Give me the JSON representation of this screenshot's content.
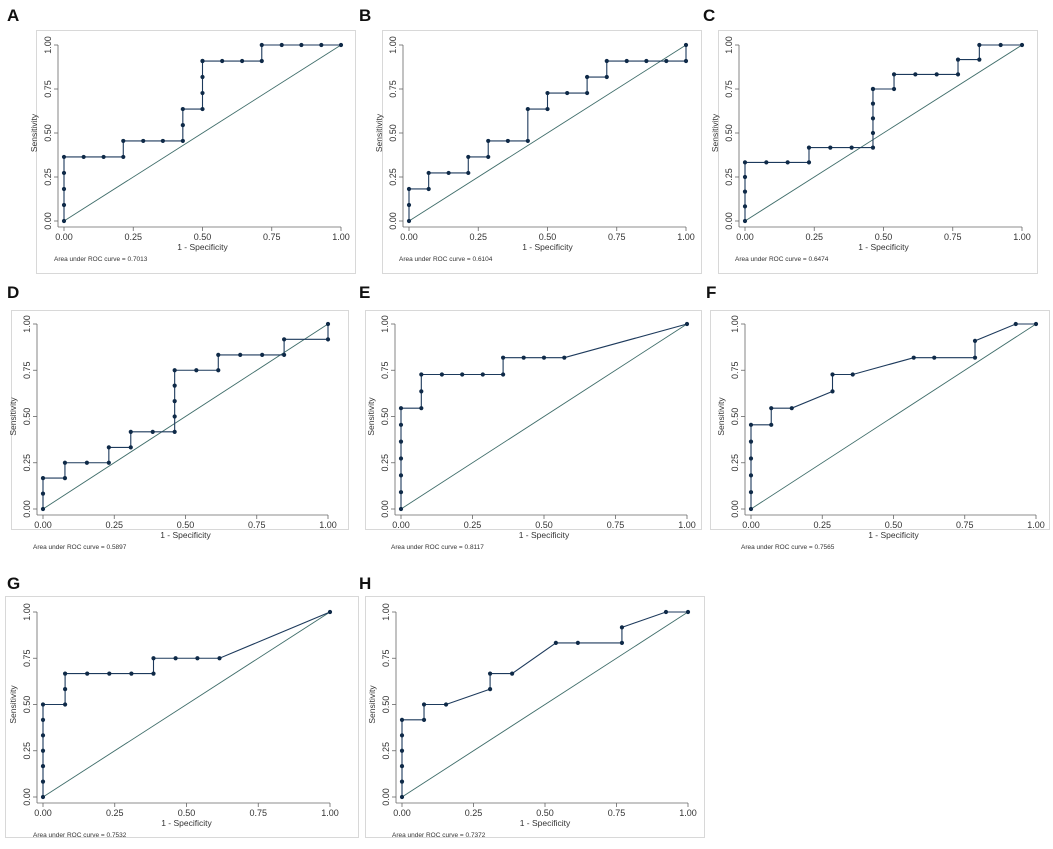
{
  "colors": {
    "curve": "#1d3a5c",
    "reference": "#3f6d6a",
    "point": "#0f2a48"
  },
  "chart_data": [
    {
      "panel": "A",
      "type": "line",
      "xlabel": "1 - Specificity",
      "ylabel": "Sensitivity",
      "xlim": [
        0,
        1
      ],
      "ylim": [
        0,
        1
      ],
      "xticks": [
        "0.00",
        "0.25",
        "0.50",
        "0.75",
        "1.00"
      ],
      "yticks": [
        "0.00",
        "0.25",
        "0.50",
        "0.75",
        "1.00"
      ],
      "auc_label": "Area under ROC curve = 0.7013",
      "series": [
        {
          "name": "ROC",
          "x": [
            0,
            0,
            0,
            0,
            0,
            0.071,
            0.143,
            0.214,
            0.214,
            0.286,
            0.357,
            0.429,
            0.429,
            0.429,
            0.5,
            0.5,
            0.5,
            0.5,
            0.5,
            0.571,
            0.643,
            0.714,
            0.714,
            0.786,
            0.857,
            0.929,
            1
          ],
          "y": [
            0,
            0.091,
            0.182,
            0.273,
            0.364,
            0.364,
            0.364,
            0.364,
            0.455,
            0.455,
            0.455,
            0.455,
            0.545,
            0.636,
            0.636,
            0.727,
            0.818,
            0.909,
            0.909,
            0.909,
            0.909,
            0.909,
            1,
            1,
            1,
            1,
            1
          ]
        }
      ]
    },
    {
      "panel": "B",
      "type": "line",
      "xlabel": "1 - Specificity",
      "ylabel": "Sensitivity",
      "xlim": [
        0,
        1
      ],
      "ylim": [
        0,
        1
      ],
      "xticks": [
        "0.00",
        "0.25",
        "0.50",
        "0.75",
        "1.00"
      ],
      "yticks": [
        "0.00",
        "0.25",
        "0.50",
        "0.75",
        "1.00"
      ],
      "auc_label": "Area under ROC curve = 0.6104",
      "series": [
        {
          "name": "ROC",
          "x": [
            0,
            0,
            0,
            0.071,
            0.071,
            0.143,
            0.214,
            0.214,
            0.286,
            0.286,
            0.357,
            0.429,
            0.429,
            0.5,
            0.5,
            0.571,
            0.643,
            0.643,
            0.714,
            0.714,
            0.786,
            0.857,
            0.929,
            1,
            1
          ],
          "y": [
            0,
            0.091,
            0.182,
            0.182,
            0.273,
            0.273,
            0.273,
            0.364,
            0.364,
            0.455,
            0.455,
            0.455,
            0.636,
            0.636,
            0.727,
            0.727,
            0.727,
            0.818,
            0.818,
            0.909,
            0.909,
            0.909,
            0.909,
            0.909,
            1
          ]
        }
      ]
    },
    {
      "panel": "C",
      "type": "line",
      "xlabel": "1 - Specificity",
      "ylabel": "Sensitivity",
      "xlim": [
        0,
        1
      ],
      "ylim": [
        0,
        1
      ],
      "xticks": [
        "0.00",
        "0.25",
        "0.50",
        "0.75",
        "1.00"
      ],
      "yticks": [
        "0.00",
        "0.25",
        "0.50",
        "0.75",
        "1.00"
      ],
      "auc_label": "Area under ROC curve = 0.6474",
      "series": [
        {
          "name": "ROC",
          "x": [
            0,
            0,
            0,
            0,
            0,
            0.077,
            0.154,
            0.231,
            0.231,
            0.308,
            0.385,
            0.462,
            0.462,
            0.462,
            0.462,
            0.462,
            0.462,
            0.538,
            0.538,
            0.615,
            0.692,
            0.769,
            0.769,
            0.846,
            0.846,
            0.923,
            1
          ],
          "y": [
            0,
            0.083,
            0.167,
            0.25,
            0.333,
            0.333,
            0.333,
            0.333,
            0.417,
            0.417,
            0.417,
            0.417,
            0.5,
            0.583,
            0.667,
            0.75,
            0.75,
            0.75,
            0.833,
            0.833,
            0.833,
            0.833,
            0.917,
            0.917,
            1,
            1,
            1
          ]
        }
      ]
    },
    {
      "panel": "D",
      "type": "line",
      "xlabel": "1 - Specificity",
      "ylabel": "Sensitivity",
      "xlim": [
        0,
        1
      ],
      "ylim": [
        0,
        1
      ],
      "xticks": [
        "0.00",
        "0.25",
        "0.50",
        "0.75",
        "1.00"
      ],
      "yticks": [
        "0.00",
        "0.25",
        "0.50",
        "0.75",
        "1.00"
      ],
      "auc_label": "Area under ROC curve = 0.5897",
      "series": [
        {
          "name": "ROC",
          "x": [
            0,
            0,
            0,
            0.077,
            0.077,
            0.154,
            0.231,
            0.231,
            0.308,
            0.308,
            0.385,
            0.462,
            0.462,
            0.462,
            0.462,
            0.462,
            0.538,
            0.615,
            0.615,
            0.692,
            0.769,
            0.846,
            0.846,
            1,
            1
          ],
          "y": [
            0,
            0.083,
            0.167,
            0.167,
            0.25,
            0.25,
            0.25,
            0.333,
            0.333,
            0.417,
            0.417,
            0.417,
            0.5,
            0.583,
            0.667,
            0.75,
            0.75,
            0.75,
            0.833,
            0.833,
            0.833,
            0.833,
            0.917,
            0.917,
            1
          ]
        }
      ]
    },
    {
      "panel": "E",
      "type": "line",
      "xlabel": "1 - Specificity",
      "ylabel": "Sensitivity",
      "xlim": [
        0,
        1
      ],
      "ylim": [
        0,
        1
      ],
      "xticks": [
        "0.00",
        "0.25",
        "0.50",
        "0.75",
        "1.00"
      ],
      "yticks": [
        "0.00",
        "0.25",
        "0.50",
        "0.75",
        "1.00"
      ],
      "auc_label": "Area under ROC curve = 0.8117",
      "series": [
        {
          "name": "ROC",
          "x": [
            0,
            0,
            0,
            0,
            0,
            0,
            0,
            0.071,
            0.071,
            0.071,
            0.143,
            0.214,
            0.286,
            0.357,
            0.357,
            0.429,
            0.5,
            0.571,
            1
          ],
          "y": [
            0,
            0.091,
            0.182,
            0.273,
            0.364,
            0.455,
            0.545,
            0.545,
            0.636,
            0.727,
            0.727,
            0.727,
            0.727,
            0.727,
            0.818,
            0.818,
            0.818,
            0.818,
            1
          ]
        }
      ]
    },
    {
      "panel": "F",
      "type": "line",
      "xlabel": "1 - Specificity",
      "ylabel": "Sensitivity",
      "xlim": [
        0,
        1
      ],
      "ylim": [
        0,
        1
      ],
      "xticks": [
        "0.00",
        "0.25",
        "0.50",
        "0.75",
        "1.00"
      ],
      "yticks": [
        "0.00",
        "0.25",
        "0.50",
        "0.75",
        "1.00"
      ],
      "auc_label": "Area under ROC curve = 0.7565",
      "series": [
        {
          "name": "ROC",
          "x": [
            0,
            0,
            0,
            0,
            0,
            0,
            0.071,
            0.071,
            0.143,
            0.286,
            0.286,
            0.357,
            0.571,
            0.643,
            0.786,
            0.786,
            0.929,
            1
          ],
          "y": [
            0,
            0.091,
            0.182,
            0.273,
            0.364,
            0.455,
            0.455,
            0.545,
            0.545,
            0.636,
            0.727,
            0.727,
            0.818,
            0.818,
            0.818,
            0.909,
            1,
            1
          ]
        }
      ]
    },
    {
      "panel": "G",
      "type": "line",
      "xlabel": "1 - Specificity",
      "ylabel": "Sensitivity",
      "xlim": [
        0,
        1
      ],
      "ylim": [
        0,
        1
      ],
      "xticks": [
        "0.00",
        "0.25",
        "0.50",
        "0.75",
        "1.00"
      ],
      "yticks": [
        "0.00",
        "0.25",
        "0.50",
        "0.75",
        "1.00"
      ],
      "auc_label": "Area under ROC curve = 0.7532",
      "series": [
        {
          "name": "ROC",
          "x": [
            0,
            0,
            0,
            0,
            0,
            0,
            0,
            0.077,
            0.077,
            0.077,
            0.154,
            0.231,
            0.308,
            0.385,
            0.385,
            0.462,
            0.538,
            0.615,
            1
          ],
          "y": [
            0,
            0.083,
            0.167,
            0.25,
            0.333,
            0.417,
            0.5,
            0.5,
            0.583,
            0.667,
            0.667,
            0.667,
            0.667,
            0.667,
            0.75,
            0.75,
            0.75,
            0.75,
            1
          ]
        }
      ]
    },
    {
      "panel": "H",
      "type": "line",
      "xlabel": "1 - Specificity",
      "ylabel": "Sensitivity",
      "xlim": [
        0,
        1
      ],
      "ylim": [
        0,
        1
      ],
      "xticks": [
        "0.00",
        "0.25",
        "0.50",
        "0.75",
        "1.00"
      ],
      "yticks": [
        "0.00",
        "0.25",
        "0.50",
        "0.75",
        "1.00"
      ],
      "auc_label": "Area under ROC curve = 0.7372",
      "series": [
        {
          "name": "ROC",
          "x": [
            0,
            0,
            0,
            0,
            0,
            0,
            0.077,
            0.077,
            0.154,
            0.308,
            0.308,
            0.385,
            0.538,
            0.615,
            0.769,
            0.769,
            0.923,
            1
          ],
          "y": [
            0,
            0.083,
            0.167,
            0.25,
            0.333,
            0.417,
            0.417,
            0.5,
            0.5,
            0.583,
            0.667,
            0.667,
            0.833,
            0.833,
            0.833,
            0.917,
            1,
            1
          ]
        }
      ]
    }
  ]
}
